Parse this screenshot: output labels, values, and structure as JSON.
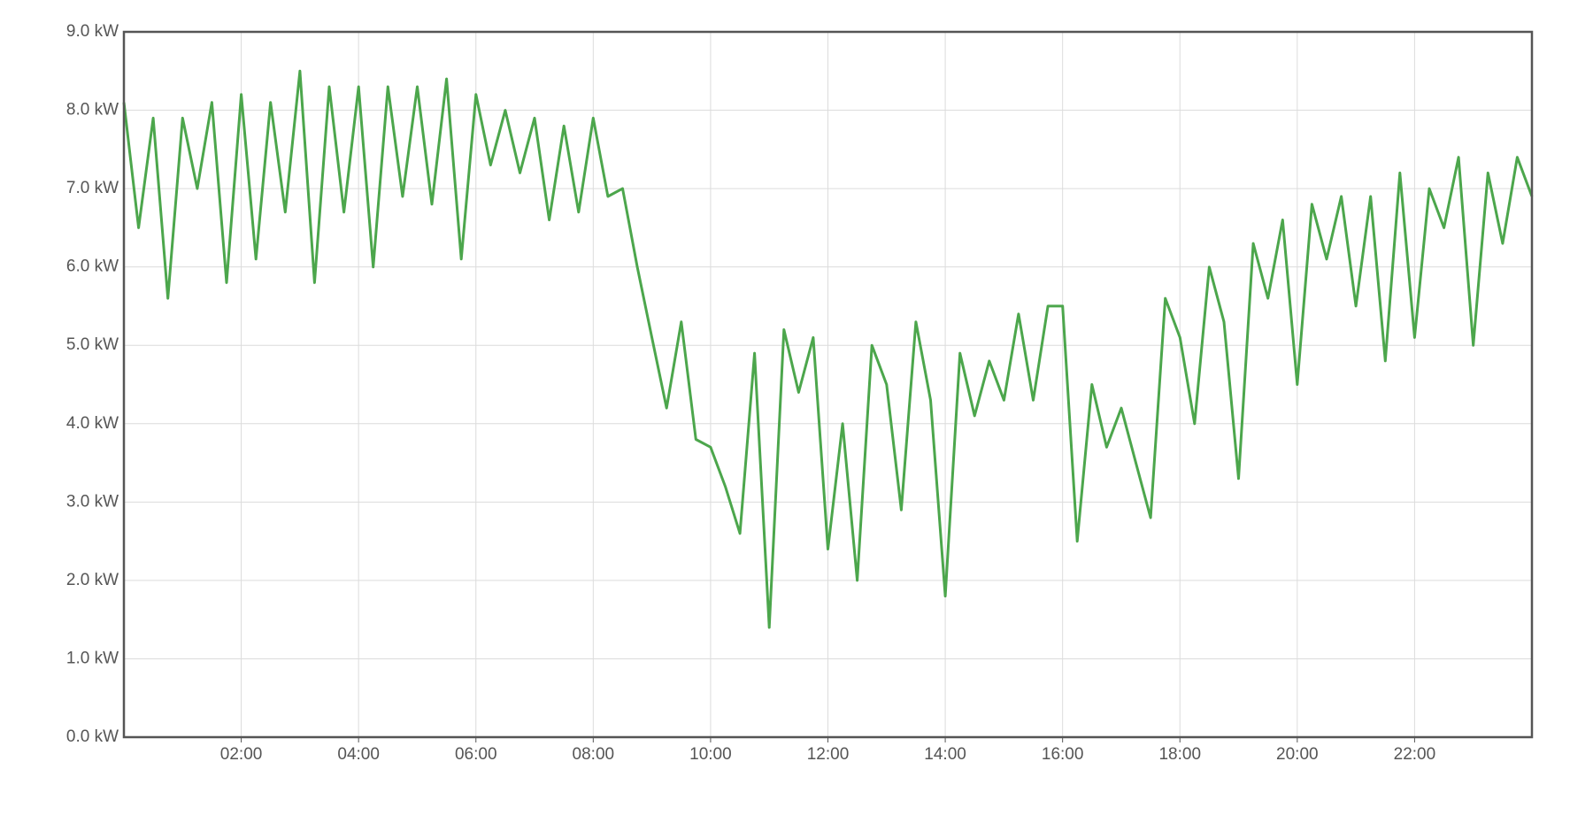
{
  "chart_data": {
    "type": "line",
    "x": [
      0,
      0.25,
      0.5,
      0.75,
      1,
      1.25,
      1.5,
      1.75,
      2,
      2.25,
      2.5,
      2.75,
      3,
      3.25,
      3.5,
      3.75,
      4,
      4.25,
      4.5,
      4.75,
      5,
      5.25,
      5.5,
      5.75,
      6,
      6.25,
      6.5,
      6.75,
      7,
      7.25,
      7.5,
      7.75,
      8,
      8.25,
      8.5,
      8.75,
      9,
      9.25,
      9.5,
      9.75,
      10,
      10.25,
      10.5,
      10.75,
      11,
      11.25,
      11.5,
      11.75,
      12,
      12.25,
      12.5,
      12.75,
      13,
      13.25,
      13.5,
      13.75,
      14,
      14.25,
      14.5,
      14.75,
      15,
      15.25,
      15.5,
      15.75,
      16,
      16.25,
      16.5,
      16.75,
      17,
      17.25,
      17.5,
      17.75,
      18,
      18.25,
      18.5,
      18.75,
      19,
      19.25,
      19.5,
      19.75,
      20,
      20.25,
      20.5,
      20.75,
      21,
      21.25,
      21.5,
      21.75,
      22,
      22.25,
      22.5,
      22.75,
      23,
      23.25,
      23.5,
      23.75,
      24
    ],
    "series": [
      {
        "color": "#4ca64c",
        "values": [
          8.1,
          6.5,
          7.9,
          5.6,
          7.9,
          7.0,
          8.1,
          5.8,
          8.2,
          6.1,
          8.1,
          6.7,
          8.5,
          5.8,
          8.3,
          6.7,
          8.3,
          6.0,
          8.3,
          6.9,
          8.3,
          6.8,
          8.4,
          6.1,
          8.2,
          7.3,
          8.0,
          7.2,
          7.9,
          6.6,
          7.8,
          6.7,
          7.9,
          6.9,
          7.0,
          6.0,
          5.1,
          4.2,
          5.3,
          3.8,
          3.7,
          3.2,
          2.6,
          4.9,
          1.4,
          5.2,
          4.4,
          5.1,
          2.4,
          4.0,
          2.0,
          5.0,
          4.5,
          2.9,
          5.3,
          4.3,
          1.8,
          4.9,
          4.1,
          4.8,
          4.3,
          5.4,
          4.3,
          5.5,
          5.5,
          2.5,
          4.5,
          3.7,
          4.2,
          3.5,
          2.8,
          5.6,
          5.1,
          4.0,
          6.0,
          5.3,
          3.3,
          6.3,
          5.6,
          6.6,
          4.5,
          6.8,
          6.1,
          6.9,
          5.5,
          6.9,
          4.8,
          7.2,
          5.1,
          7.0,
          6.5,
          7.4,
          5.0,
          7.2,
          6.3,
          7.4,
          6.9
        ]
      }
    ],
    "xlim": [
      0,
      24
    ],
    "xticks": [
      {
        "value": 2,
        "label": "02:00"
      },
      {
        "value": 4,
        "label": "04:00"
      },
      {
        "value": 6,
        "label": "06:00"
      },
      {
        "value": 8,
        "label": "08:00"
      },
      {
        "value": 10,
        "label": "10:00"
      },
      {
        "value": 12,
        "label": "12:00"
      },
      {
        "value": 14,
        "label": "14:00"
      },
      {
        "value": 16,
        "label": "16:00"
      },
      {
        "value": 18,
        "label": "18:00"
      },
      {
        "value": 20,
        "label": "20:00"
      },
      {
        "value": 22,
        "label": "22:00"
      }
    ],
    "ylim": [
      0,
      9
    ],
    "yticks": [
      {
        "value": 0,
        "label": "0.0 kW"
      },
      {
        "value": 1,
        "label": "1.0 kW"
      },
      {
        "value": 2,
        "label": "2.0 kW"
      },
      {
        "value": 3,
        "label": "3.0 kW"
      },
      {
        "value": 4,
        "label": "4.0 kW"
      },
      {
        "value": 5,
        "label": "5.0 kW"
      },
      {
        "value": 6,
        "label": "6.0 kW"
      },
      {
        "value": 7,
        "label": "7.0 kW"
      },
      {
        "value": 8,
        "label": "8.0 kW"
      },
      {
        "value": 9,
        "label": "9.0 kW"
      }
    ],
    "grid": true
  }
}
